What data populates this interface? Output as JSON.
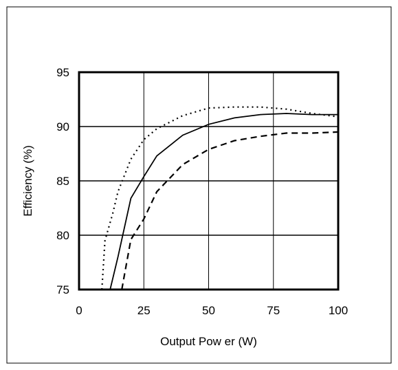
{
  "chart_data": {
    "type": "line",
    "title": "",
    "xlabel": "Output Pow er (W)",
    "ylabel": "Efficiency (%)",
    "xlim": [
      0,
      100
    ],
    "ylim": [
      75,
      95
    ],
    "xticks": [
      0,
      25,
      50,
      75,
      100
    ],
    "yticks": [
      75,
      80,
      85,
      90,
      95
    ],
    "grid": true,
    "legend": "none",
    "series": [
      {
        "line_style": "dotted",
        "color": "#000000",
        "points": [
          [
            8.8,
            75
          ],
          [
            10,
            79.5
          ],
          [
            13,
            82
          ],
          [
            15,
            84
          ],
          [
            20,
            87
          ],
          [
            25,
            88.8
          ],
          [
            30,
            89.8
          ],
          [
            40,
            91
          ],
          [
            50,
            91.7
          ],
          [
            60,
            91.8
          ],
          [
            70,
            91.8
          ],
          [
            80,
            91.6
          ],
          [
            90,
            91.2
          ],
          [
            100,
            90.9
          ]
        ]
      },
      {
        "line_style": "solid",
        "color": "#000000",
        "points": [
          [
            12,
            75
          ],
          [
            15,
            78
          ],
          [
            20,
            83.4
          ],
          [
            25,
            85.4
          ],
          [
            30,
            87.3
          ],
          [
            40,
            89.2
          ],
          [
            50,
            90.2
          ],
          [
            60,
            90.8
          ],
          [
            70,
            91.1
          ],
          [
            80,
            91.2
          ],
          [
            90,
            91.1
          ],
          [
            100,
            91.1
          ]
        ]
      },
      {
        "line_style": "dashed",
        "color": "#000000",
        "points": [
          [
            16.5,
            75
          ],
          [
            18,
            77
          ],
          [
            20,
            79.6
          ],
          [
            25,
            81.5
          ],
          [
            30,
            84
          ],
          [
            40,
            86.5
          ],
          [
            50,
            87.9
          ],
          [
            60,
            88.7
          ],
          [
            70,
            89.1
          ],
          [
            80,
            89.4
          ],
          [
            90,
            89.4
          ],
          [
            100,
            89.5
          ]
        ]
      }
    ]
  }
}
